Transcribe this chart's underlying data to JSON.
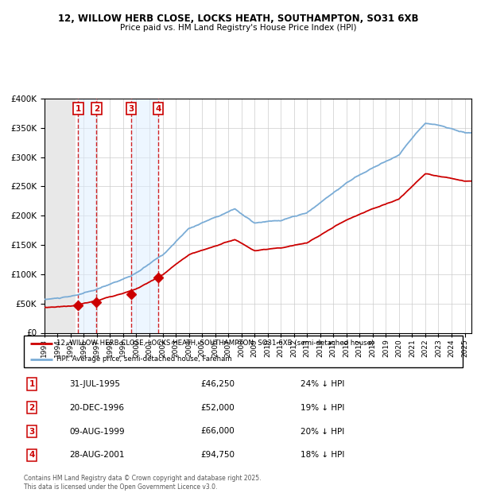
{
  "title_line1": "12, WILLOW HERB CLOSE, LOCKS HEATH, SOUTHAMPTON, SO31 6XB",
  "title_line2": "Price paid vs. HM Land Registry's House Price Index (HPI)",
  "ylim": [
    0,
    400000
  ],
  "yticks": [
    0,
    50000,
    100000,
    150000,
    200000,
    250000,
    300000,
    350000,
    400000
  ],
  "ytick_labels": [
    "£0",
    "£50K",
    "£100K",
    "£150K",
    "£200K",
    "£250K",
    "£300K",
    "£350K",
    "£400K"
  ],
  "hpi_color": "#7aacd6",
  "price_color": "#cc0000",
  "sale_dates": [
    1995.58,
    1996.97,
    1999.6,
    2001.66
  ],
  "sale_prices": [
    46250,
    52000,
    66000,
    94750
  ],
  "sale_labels": [
    "1",
    "2",
    "3",
    "4"
  ],
  "legend_line1": "12, WILLOW HERB CLOSE, LOCKS HEATH, SOUTHAMPTON, SO31 6XB (semi-detached house)",
  "legend_line2": "HPI: Average price, semi-detached house, Fareham",
  "table_rows": [
    [
      "1",
      "31-JUL-1995",
      "£46,250",
      "24% ↓ HPI"
    ],
    [
      "2",
      "20-DEC-1996",
      "£52,000",
      "19% ↓ HPI"
    ],
    [
      "3",
      "09-AUG-1999",
      "£66,000",
      "20% ↓ HPI"
    ],
    [
      "4",
      "28-AUG-2001",
      "£94,750",
      "18% ↓ HPI"
    ]
  ],
  "footer": "Contains HM Land Registry data © Crown copyright and database right 2025.\nThis data is licensed under the Open Government Licence v3.0.",
  "vline_color": "#cc0000",
  "shade_color": "#ddeeff",
  "hatch_color": "#cccccc",
  "xlim_start": 1993,
  "xlim_end": 2025.5
}
